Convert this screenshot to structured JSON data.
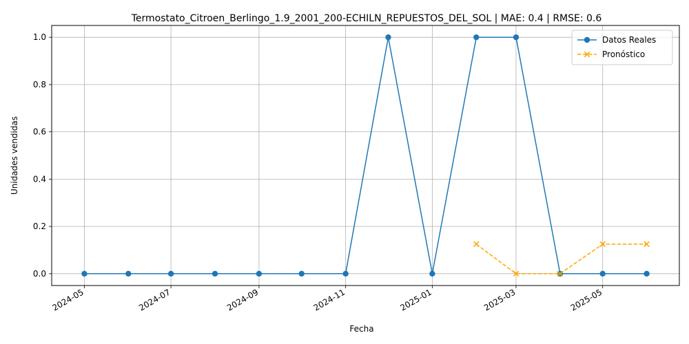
{
  "chart_data": {
    "type": "line",
    "title": "Termostato_Citroen_Berlingo_1.9_2001_200-ECHILN_REPUESTOS_DEL_SOL | MAE: 0.4 | RMSE: 0.6",
    "xlabel": "Fecha",
    "ylabel": "Unidades vendidas",
    "xlim": [
      "2024-04-08",
      "2025-06-24"
    ],
    "ylim": [
      -0.05,
      1.05
    ],
    "grid": true,
    "legend_position": "top-right",
    "x_ticks": [
      "2024-05",
      "2024-07",
      "2024-09",
      "2024-11",
      "2025-01",
      "2025-03",
      "2025-05"
    ],
    "y_ticks": [
      "0.0",
      "0.2",
      "0.4",
      "0.6",
      "0.8",
      "1.0"
    ],
    "series": [
      {
        "name": "Datos Reales",
        "color": "#1f77b4",
        "line_style": "solid",
        "marker": "circle",
        "x": [
          "2024-05-01",
          "2024-06-01",
          "2024-07-01",
          "2024-08-01",
          "2024-09-01",
          "2024-10-01",
          "2024-11-01",
          "2024-12-01",
          "2025-01-01",
          "2025-02-01",
          "2025-03-01",
          "2025-04-01",
          "2025-05-01",
          "2025-06-01"
        ],
        "values": [
          0,
          0,
          0,
          0,
          0,
          0,
          0,
          1,
          0,
          1,
          1,
          0,
          0,
          0
        ]
      },
      {
        "name": "Pronóstico",
        "color": "#ffa500",
        "line_style": "dashed",
        "marker": "x",
        "x": [
          "2025-02-01",
          "2025-03-01",
          "2025-04-01",
          "2025-05-01",
          "2025-06-01"
        ],
        "values": [
          0.125,
          0.0,
          0.0,
          0.125,
          0.125
        ]
      }
    ]
  }
}
